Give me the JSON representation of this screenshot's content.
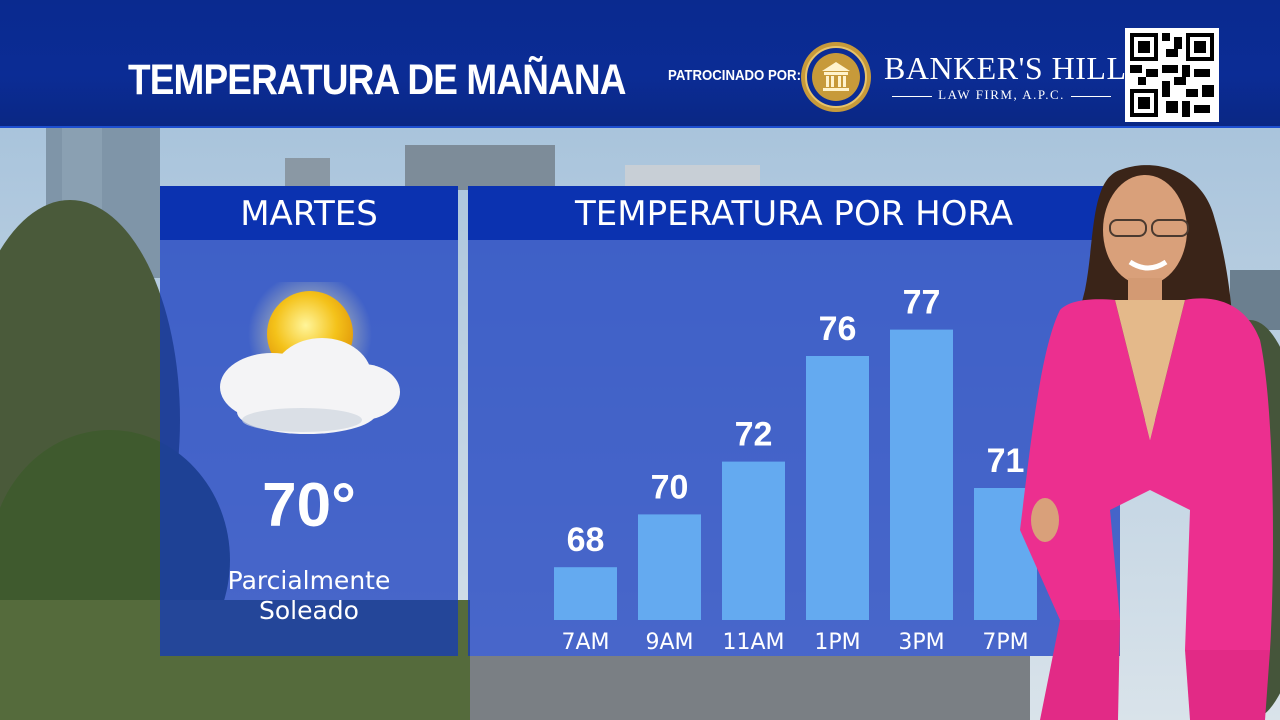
{
  "header": {
    "title": "TEMPERATURA DE MAÑANA",
    "sponsor_label": "PATROCINADO POR:",
    "sponsor_name": "BANKER'S HILL",
    "sponsor_sub": "LAW FIRM, A.P.C."
  },
  "day_panel": {
    "day": "MARTES",
    "icon": "partly-sunny-icon",
    "temperature": "70°",
    "condition_line1": "Parcialmente",
    "condition_line2": "Soleado"
  },
  "hourly_panel": {
    "title": "TEMPERATURA POR HORA"
  },
  "colors": {
    "header_bg": "#0b2c95",
    "panel_head": "#0b32b0",
    "bar": "#64aaf0",
    "jacket": "#ec2f8f"
  },
  "chart_data": {
    "type": "bar",
    "categories": [
      "7AM",
      "9AM",
      "11AM",
      "1PM",
      "3PM",
      "7PM"
    ],
    "values": [
      68,
      70,
      72,
      76,
      77,
      71
    ],
    "title": "TEMPERATURA POR HORA",
    "xlabel": "",
    "ylabel": "",
    "ylim": [
      66,
      78
    ],
    "grid": false,
    "legend": "none"
  }
}
